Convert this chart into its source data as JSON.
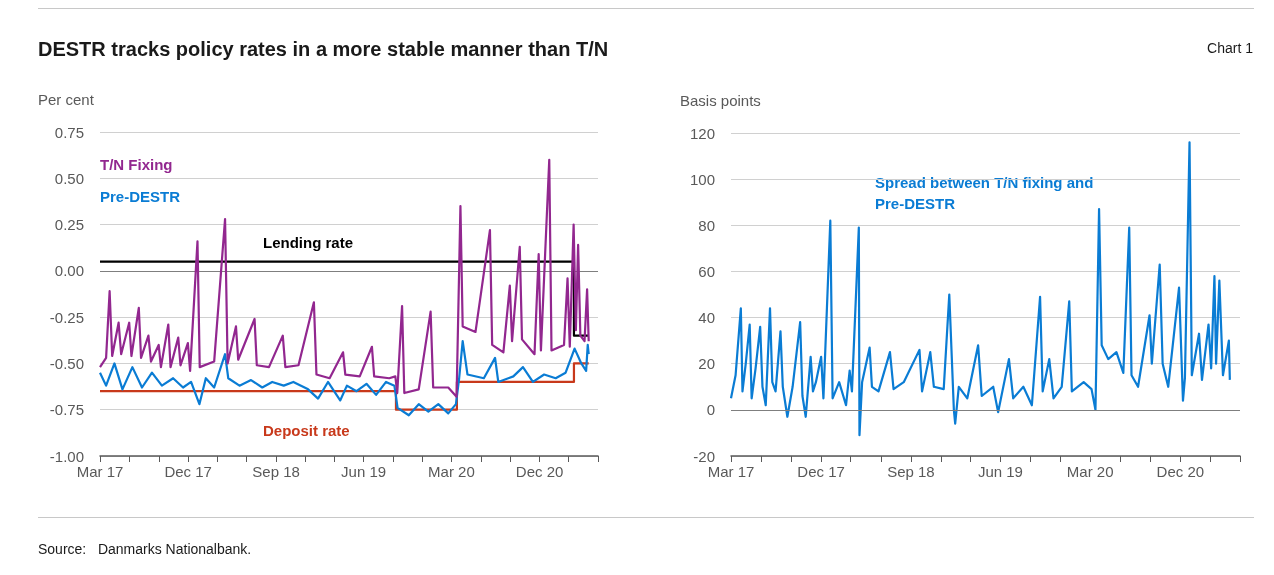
{
  "chart_data": [
    {
      "type": "line",
      "title": "DESTR tracks policy rates in a more stable manner than T/N",
      "ylabel": "Per cent",
      "annotations": [
        "Chart 1",
        "Source:   Danmarks Nationalbank."
      ],
      "marker": "none",
      "grid": "y",
      "xlim": [
        "2017-03",
        "2021-06"
      ],
      "xticks": [
        {
          "value": "2017-03",
          "label": "Mar 17"
        },
        {
          "value": "2017-06",
          "label": null
        },
        {
          "value": "2017-09",
          "label": null
        },
        {
          "value": "2017-12",
          "label": "Dec 17"
        },
        {
          "value": "2018-03",
          "label": null
        },
        {
          "value": "2018-06",
          "label": null
        },
        {
          "value": "2018-09",
          "label": "Sep 18"
        },
        {
          "value": "2018-12",
          "label": null
        },
        {
          "value": "2019-03",
          "label": null
        },
        {
          "value": "2019-06",
          "label": "Jun 19"
        },
        {
          "value": "2019-09",
          "label": null
        },
        {
          "value": "2019-12",
          "label": null
        },
        {
          "value": "2020-03",
          "label": "Mar 20"
        },
        {
          "value": "2020-06",
          "label": null
        },
        {
          "value": "2020-09",
          "label": null
        },
        {
          "value": "2020-12",
          "label": "Dec 20"
        },
        {
          "value": "2021-03",
          "label": null
        },
        {
          "value": "2021-06",
          "label": null
        }
      ],
      "ylim": [
        -1.0,
        0.75
      ],
      "yticks": [
        {
          "value": -1.0,
          "label": "-1.00"
        },
        {
          "value": -0.75,
          "label": "-0.75"
        },
        {
          "value": -0.5,
          "label": "-0.50"
        },
        {
          "value": -0.25,
          "label": "-0.25"
        },
        {
          "value": 0,
          "label": "0.00"
        },
        {
          "value": 0.25,
          "label": "0.25"
        },
        {
          "value": 0.5,
          "label": "0.50"
        },
        {
          "value": 0.75,
          "label": "0.75"
        }
      ],
      "ref_lines": [
        {
          "axis": "y",
          "value": 0,
          "label": null,
          "color": "#7f7f7f"
        }
      ],
      "series": [
        {
          "name": "T/N Fixing",
          "color": "#92278f",
          "x": [
            "2017-03-01",
            "2017-03-20",
            "2017-03-31",
            "2017-04-08",
            "2017-04-28",
            "2017-05-06",
            "2017-05-31",
            "2017-06-07",
            "2017-06-30",
            "2017-07-07",
            "2017-07-30",
            "2017-08-07",
            "2017-08-31",
            "2017-09-07",
            "2017-09-30",
            "2017-10-07",
            "2017-10-31",
            "2017-11-07",
            "2017-11-30",
            "2017-12-07",
            "2017-12-30",
            "2018-01-06",
            "2018-02-20",
            "2018-03-26",
            "2018-04-03",
            "2018-04-29",
            "2018-05-06",
            "2018-06-26",
            "2018-07-03",
            "2018-08-10",
            "2018-09-22",
            "2018-09-30",
            "2018-11-10",
            "2018-12-28",
            "2019-01-05",
            "2019-02-15",
            "2019-03-29",
            "2019-04-05",
            "2019-05-20",
            "2019-06-27",
            "2019-07-04",
            "2019-08-20",
            "2019-09-08",
            "2019-09-14",
            "2019-09-29",
            "2019-10-06",
            "2019-11-20",
            "2019-12-27",
            "2020-01-04",
            "2020-02-20",
            "2020-03-17",
            "2020-03-29",
            "2020-04-05",
            "2020-05-15",
            "2020-06-29",
            "2020-07-06",
            "2020-08-10",
            "2020-08-30",
            "2020-09-06",
            "2020-09-30",
            "2020-10-07",
            "2020-11-15",
            "2020-11-28",
            "2020-12-05",
            "2020-12-31",
            "2021-01-07",
            "2021-02-15",
            "2021-02-26",
            "2021-03-05",
            "2021-03-17",
            "2021-03-24",
            "2021-03-31",
            "2021-04-07",
            "2021-04-20",
            "2021-04-28",
            "2021-05-03"
          ],
          "values": [
            -0.52,
            -0.47,
            -0.11,
            -0.46,
            -0.28,
            -0.45,
            -0.28,
            -0.46,
            -0.2,
            -0.47,
            -0.35,
            -0.49,
            -0.4,
            -0.52,
            -0.29,
            -0.52,
            -0.36,
            -0.51,
            -0.39,
            -0.54,
            0.16,
            -0.52,
            -0.49,
            0.28,
            -0.5,
            -0.3,
            -0.48,
            -0.26,
            -0.51,
            -0.52,
            -0.35,
            -0.52,
            -0.51,
            -0.17,
            -0.56,
            -0.58,
            -0.44,
            -0.56,
            -0.57,
            -0.41,
            -0.57,
            -0.58,
            -0.57,
            -0.66,
            -0.19,
            -0.66,
            -0.64,
            -0.22,
            -0.63,
            -0.63,
            -0.68,
            0.35,
            -0.3,
            -0.33,
            0.22,
            -0.4,
            -0.44,
            -0.08,
            -0.38,
            0.13,
            -0.37,
            -0.45,
            0.09,
            -0.43,
            0.6,
            -0.43,
            -0.4,
            -0.04,
            -0.41,
            0.25,
            -0.32,
            0.14,
            -0.35,
            -0.38,
            -0.1,
            -0.38
          ]
        },
        {
          "name": "Pre-DESTR",
          "color": "#0a7cd4",
          "x": [
            "2017-03-01",
            "2017-03-20",
            "2017-04-15",
            "2017-05-10",
            "2017-06-10",
            "2017-07-10",
            "2017-08-10",
            "2017-09-10",
            "2017-10-15",
            "2017-11-15",
            "2017-12-10",
            "2018-01-05",
            "2018-01-25",
            "2018-02-20",
            "2018-03-26",
            "2018-04-05",
            "2018-05-10",
            "2018-06-15",
            "2018-07-20",
            "2018-08-20",
            "2018-09-25",
            "2018-10-25",
            "2018-12-10",
            "2019-01-10",
            "2019-02-10",
            "2019-03-20",
            "2019-04-10",
            "2019-05-10",
            "2019-06-10",
            "2019-07-10",
            "2019-08-10",
            "2019-09-05",
            "2019-09-15",
            "2019-10-20",
            "2019-11-20",
            "2019-12-20",
            "2020-01-20",
            "2020-02-20",
            "2020-03-15",
            "2020-03-25",
            "2020-04-05",
            "2020-04-20",
            "2020-06-10",
            "2020-07-15",
            "2020-07-25",
            "2020-09-10",
            "2020-10-10",
            "2020-11-10",
            "2020-12-15",
            "2021-01-20",
            "2021-02-20",
            "2021-03-20",
            "2021-04-10",
            "2021-04-25",
            "2021-04-30",
            "2021-05-03"
          ],
          "values": [
            -0.55,
            -0.62,
            -0.5,
            -0.64,
            -0.52,
            -0.63,
            -0.55,
            -0.62,
            -0.58,
            -0.63,
            -0.6,
            -0.72,
            -0.58,
            -0.63,
            -0.45,
            -0.58,
            -0.62,
            -0.59,
            -0.63,
            -0.6,
            -0.62,
            -0.6,
            -0.64,
            -0.69,
            -0.6,
            -0.7,
            -0.62,
            -0.65,
            -0.61,
            -0.67,
            -0.6,
            -0.62,
            -0.74,
            -0.78,
            -0.72,
            -0.76,
            -0.72,
            -0.77,
            -0.72,
            -0.58,
            -0.38,
            -0.56,
            -0.58,
            -0.47,
            -0.6,
            -0.57,
            -0.52,
            -0.6,
            -0.56,
            -0.58,
            -0.55,
            -0.42,
            -0.5,
            -0.54,
            -0.4,
            -0.45
          ]
        },
        {
          "name": "Lending rate",
          "type": "step",
          "color": "#000000",
          "x": [
            "2017-03-01",
            "2021-03-18",
            "2021-05-03"
          ],
          "values": [
            0.05,
            -0.35,
            -0.35
          ]
        },
        {
          "name": "Deposit rate",
          "type": "step",
          "color": "#c8391b",
          "x": [
            "2017-03-01",
            "2019-09-10",
            "2020-03-18",
            "2021-03-18",
            "2021-05-03"
          ],
          "values": [
            -0.65,
            -0.75,
            -0.6,
            -0.5,
            -0.5
          ]
        }
      ]
    },
    {
      "type": "line",
      "ylabel": "Basis points",
      "marker": "none",
      "grid": "y",
      "xlim": [
        "2017-03",
        "2021-06"
      ],
      "xticks": [
        {
          "value": "2017-03",
          "label": "Mar 17"
        },
        {
          "value": "2017-06",
          "label": null
        },
        {
          "value": "2017-09",
          "label": null
        },
        {
          "value": "2017-12",
          "label": "Dec 17"
        },
        {
          "value": "2018-03",
          "label": null
        },
        {
          "value": "2018-06",
          "label": null
        },
        {
          "value": "2018-09",
          "label": "Sep 18"
        },
        {
          "value": "2018-12",
          "label": null
        },
        {
          "value": "2019-03",
          "label": null
        },
        {
          "value": "2019-06",
          "label": "Jun 19"
        },
        {
          "value": "2019-09",
          "label": null
        },
        {
          "value": "2019-12",
          "label": null
        },
        {
          "value": "2020-03",
          "label": "Mar 20"
        },
        {
          "value": "2020-06",
          "label": null
        },
        {
          "value": "2020-09",
          "label": null
        },
        {
          "value": "2020-12",
          "label": "Dec 20"
        },
        {
          "value": "2021-03",
          "label": null
        },
        {
          "value": "2021-06",
          "label": null
        }
      ],
      "ylim": [
        -20,
        120
      ],
      "yticks": [
        -20,
        0,
        20,
        40,
        60,
        80,
        100,
        120
      ],
      "ref_lines": [
        {
          "axis": "y",
          "value": 0,
          "label": null,
          "color": "#7f7f7f"
        }
      ],
      "series": [
        {
          "name": "Spread between T/N fixing and Pre-DESTR",
          "color": "#0a7cd4",
          "x": [
            "2017-03-01",
            "2017-03-15",
            "2017-03-31",
            "2017-04-05",
            "2017-04-15",
            "2017-04-27",
            "2017-05-03",
            "2017-05-15",
            "2017-05-29",
            "2017-06-05",
            "2017-06-15",
            "2017-06-28",
            "2017-07-05",
            "2017-07-15",
            "2017-07-30",
            "2017-08-06",
            "2017-08-20",
            "2017-09-05",
            "2017-09-28",
            "2017-10-05",
            "2017-10-15",
            "2017-10-30",
            "2017-11-06",
            "2017-11-15",
            "2017-12-01",
            "2017-12-08",
            "2017-12-29",
            "2018-01-05",
            "2018-01-25",
            "2018-02-15",
            "2018-02-26",
            "2018-03-05",
            "2018-03-26",
            "2018-03-28",
            "2018-04-05",
            "2018-04-28",
            "2018-05-05",
            "2018-05-25",
            "2018-06-29",
            "2018-07-10",
            "2018-08-10",
            "2018-09-27",
            "2018-10-05",
            "2018-10-30",
            "2018-11-10",
            "2018-12-10",
            "2018-12-27",
            "2019-01-10",
            "2019-01-14",
            "2019-01-25",
            "2019-02-20",
            "2019-03-25",
            "2019-04-05",
            "2019-05-10",
            "2019-05-25",
            "2019-06-27",
            "2019-07-10",
            "2019-08-10",
            "2019-09-05",
            "2019-09-30",
            "2019-10-08",
            "2019-10-28",
            "2019-11-10",
            "2019-12-05",
            "2019-12-28",
            "2020-01-05",
            "2020-02-10",
            "2020-03-05",
            "2020-03-17",
            "2020-03-28",
            "2020-04-05",
            "2020-04-25",
            "2020-05-20",
            "2020-06-10",
            "2020-06-28",
            "2020-07-05",
            "2020-07-25",
            "2020-08-29",
            "2020-09-05",
            "2020-09-29",
            "2020-10-08",
            "2020-10-25",
            "2020-11-27",
            "2020-12-09",
            "2020-12-15",
            "2020-12-29",
            "2021-01-05",
            "2021-01-27",
            "2021-02-05",
            "2021-02-25",
            "2021-03-05",
            "2021-03-15",
            "2021-03-20",
            "2021-03-30",
            "2021-04-10",
            "2021-04-28",
            "2021-05-01"
          ],
          "values": [
            5,
            15,
            44,
            8,
            20,
            37,
            5,
            18,
            36,
            10,
            2,
            44,
            12,
            8,
            34,
            10,
            -3,
            10,
            38,
            6,
            -3,
            23,
            8,
            12,
            23,
            5,
            82,
            5,
            12,
            2,
            17,
            8,
            79,
            -11,
            12,
            27,
            10,
            8,
            25,
            9,
            12,
            26,
            8,
            25,
            10,
            9,
            50,
            0,
            -6,
            10,
            5,
            28,
            6,
            10,
            -1,
            22,
            5,
            10,
            2,
            49,
            8,
            22,
            5,
            10,
            47,
            8,
            12,
            9,
            0,
            87,
            28,
            22,
            25,
            16,
            79,
            15,
            10,
            41,
            20,
            63,
            20,
            10,
            53,
            4,
            14,
            116,
            15,
            33,
            13,
            37,
            18,
            58,
            20,
            56,
            15,
            30,
            13
          ]
        }
      ]
    }
  ]
}
